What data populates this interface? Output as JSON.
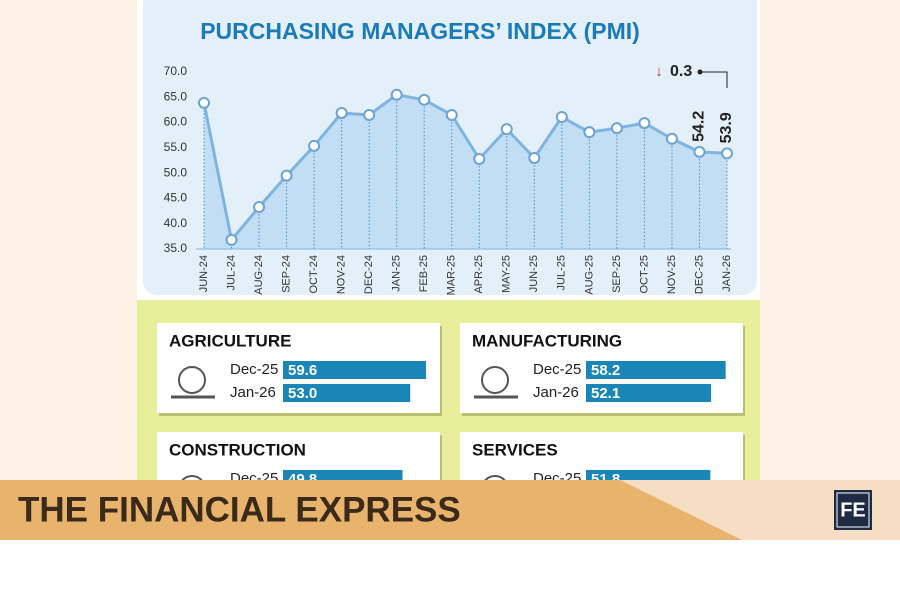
{
  "chart_data": [
    {
      "type": "line",
      "title": "PURCHASING MANAGERS’ INDEX (PMI)",
      "categories": [
        "JUN-24",
        "JUL-24",
        "AUG-24",
        "SEP-24",
        "OCT-24",
        "NOV-24",
        "DEC-24",
        "JAN-25",
        "FEB-25",
        "MAR-25",
        "APR-25",
        "MAY-25",
        "JUN-25",
        "JUL-25",
        "AUG-25",
        "SEP-25",
        "OCT-25",
        "NOV-25",
        "DEC-25",
        "JAN-26"
      ],
      "values": [
        63.9,
        36.8,
        43.3,
        49.5,
        55.4,
        61.9,
        61.5,
        65.5,
        64.5,
        61.5,
        52.8,
        58.7,
        53.0,
        61.1,
        58.1,
        58.9,
        59.9,
        56.8,
        54.2,
        53.9
      ],
      "color": "#7fb4e0",
      "ylim": [
        35,
        70
      ],
      "yticks": [
        {
          "value": 35,
          "label": "35.0"
        },
        {
          "value": 40,
          "label": "40.0"
        },
        {
          "value": 45,
          "label": "45.0"
        },
        {
          "value": 50,
          "label": "50.0"
        },
        {
          "value": 55,
          "label": "55.0"
        },
        {
          "value": 60,
          "label": "60.0"
        },
        {
          "value": 65,
          "label": "65.0"
        },
        {
          "value": 70,
          "label": "70.0"
        }
      ],
      "annotation": "0.3"
    },
    {
      "type": "bar",
      "title": "AGRICULTURE",
      "categories": [
        "Dec-25",
        "Jan-26"
      ],
      "values": [
        59.6,
        53.0
      ],
      "value_labels": [
        "59.6",
        "53.0"
      ],
      "color": "#1a86b8"
    },
    {
      "type": "bar",
      "title": "MANUFACTURING",
      "categories": [
        "Dec-25",
        "Jan-26"
      ],
      "values": [
        58.2,
        52.1
      ],
      "color": "#1a86b8"
    },
    {
      "type": "bar",
      "title": "CONSTRUCTION",
      "categories": [
        "Dec-25"
      ],
      "values": [
        49.8
      ],
      "color": "#1a86b8"
    },
    {
      "type": "bar",
      "title": "SERVICES",
      "categories": [
        "Dec-25"
      ],
      "values": [
        51.8
      ],
      "color": "#1a86b8"
    }
  ],
  "banner": {
    "title": "THE FINANCIAL EXPRESS",
    "logo": "FE"
  }
}
